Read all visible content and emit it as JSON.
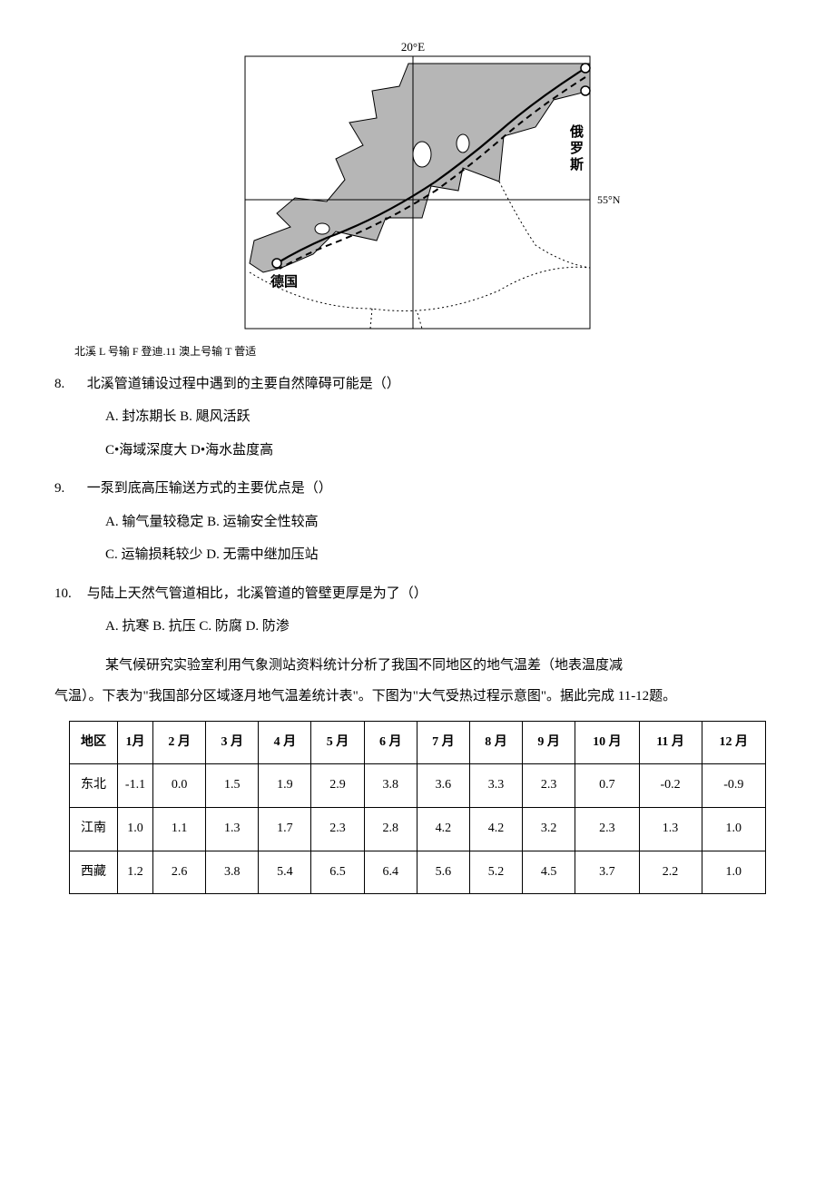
{
  "map": {
    "top_label": "20°E",
    "right_lat": "55°N",
    "label_germany": "德国",
    "label_russia_1": "俄",
    "label_russia_2": "罗",
    "label_russia_3": "斯",
    "caption": "北溪 L 号输 F 登迪.11 澳上号输 T 菅适",
    "colors": {
      "sea": "#b6b6b6",
      "land": "#ffffff",
      "border": "#000000"
    }
  },
  "q8": {
    "num": "8.",
    "text": "北溪管道铺设过程中遇到的主要自然障碍可能是（）",
    "optA": "A. 封冻期长 B. 飓风活跃",
    "optC": "C•海域深度大 D•海水盐度高"
  },
  "q9": {
    "num": "9.",
    "text": "一泵到底高压输送方式的主要优点是（）",
    "optA": "A. 输气量较稳定 B. 运输安全性较高",
    "optC": "C. 运输损耗较少 D. 无需中继加压站"
  },
  "q10": {
    "num": "10.",
    "text": "与陆上天然气管道相比，北溪管道的管壁更厚是为了（）",
    "optA": "A. 抗寒 B. 抗压 C. 防腐 D. 防渗"
  },
  "passage": {
    "p1": "某气候研究实验室利用气象测站资料统计分析了我国不同地区的地气温差（地表温度减",
    "p2": "气温）。下表为\"我国部分区域逐月地气温差统计表\"。下图为\"大气受热过程示意图\"。据此完成 11-12题。"
  },
  "table": {
    "headers": [
      "地区",
      "1月",
      "2 月",
      "3 月",
      "4 月",
      "5 月",
      "6 月",
      "7 月",
      "8 月",
      "9 月",
      "10 月",
      "11 月",
      "12 月"
    ],
    "rows": [
      {
        "region": "东北",
        "vals": [
          "-1.1",
          "0.0",
          "1.5",
          "1.9",
          "2.9",
          "3.8",
          "3.6",
          "3.3",
          "2.3",
          "0.7",
          "-0.2",
          "-0.9"
        ]
      },
      {
        "region": "江南",
        "vals": [
          "1.0",
          "1.1",
          "1.3",
          "1.7",
          "2.3",
          "2.8",
          "4.2",
          "4.2",
          "3.2",
          "2.3",
          "1.3",
          "1.0"
        ]
      },
      {
        "region": "西藏",
        "vals": [
          "1.2",
          "2.6",
          "3.8",
          "5.4",
          "6.5",
          "6.4",
          "5.6",
          "5.2",
          "4.5",
          "3.7",
          "2.2",
          "1.0"
        ]
      }
    ]
  }
}
